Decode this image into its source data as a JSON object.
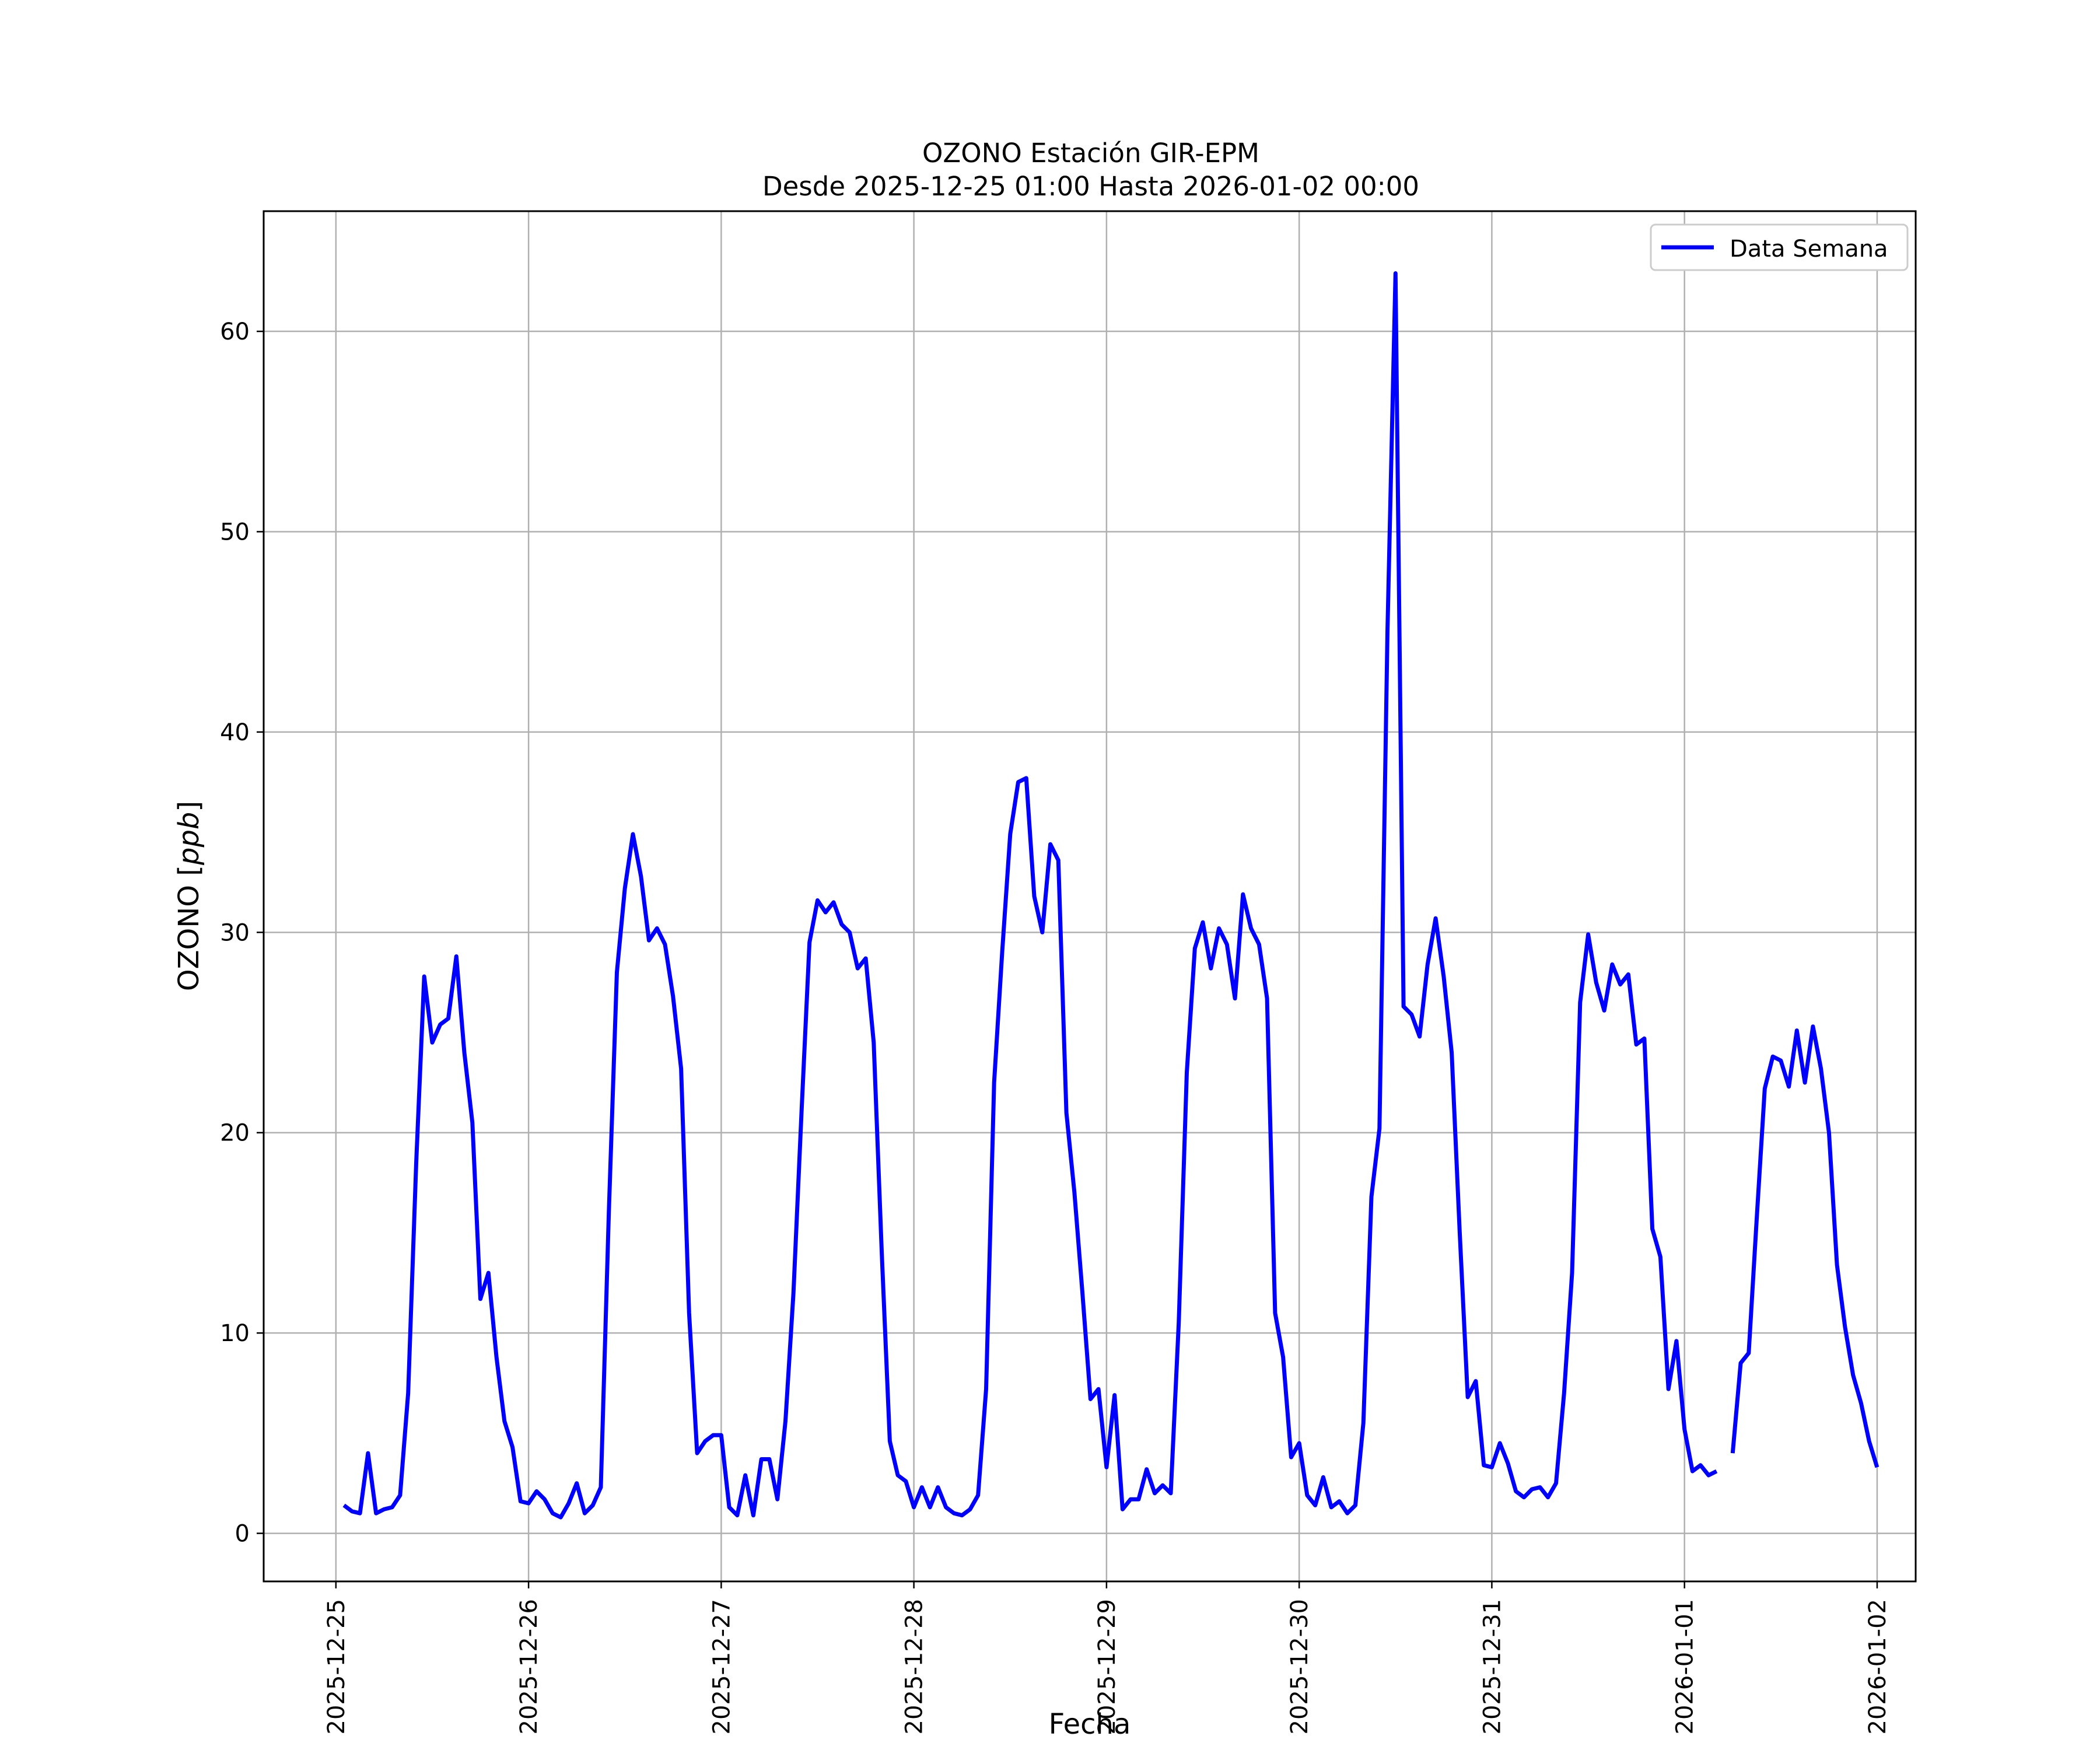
{
  "chart_data": {
    "type": "line",
    "title": "OZONO Estación GIR-EPM",
    "subtitle": "Desde 2025-12-25 01:00 Hasta 2026-01-02 00:00",
    "xlabel": "Fecha",
    "ylabel": "OZONO [ppb]",
    "ylabel_main": "OZONO [",
    "ylabel_unit": "ppb",
    "ylabel_close": "]",
    "ylim": [
      -2.4,
      66
    ],
    "xlim": [
      "2025-12-24 15:00",
      "2026-01-02 04:48"
    ],
    "yticks": [
      0,
      10,
      20,
      30,
      40,
      50,
      60
    ],
    "xticks": [
      "2025-12-25",
      "2025-12-26",
      "2025-12-27",
      "2025-12-28",
      "2025-12-29",
      "2025-12-30",
      "2025-12-31",
      "2026-01-01",
      "2026-01-02"
    ],
    "grid": true,
    "legend": "upper-right",
    "line_color": "#0000ff",
    "series": [
      {
        "name": "Data Semana",
        "x": [
          "2025-12-25 01:00",
          "2025-12-25 02:00",
          "2025-12-25 03:00",
          "2025-12-25 04:00",
          "2025-12-25 05:00",
          "2025-12-25 06:00",
          "2025-12-25 07:00",
          "2025-12-25 08:00",
          "2025-12-25 09:00",
          "2025-12-25 10:00",
          "2025-12-25 11:00",
          "2025-12-25 12:00",
          "2025-12-25 13:00",
          "2025-12-25 14:00",
          "2025-12-25 15:00",
          "2025-12-25 16:00",
          "2025-12-25 17:00",
          "2025-12-25 18:00",
          "2025-12-25 19:00",
          "2025-12-25 20:00",
          "2025-12-25 21:00",
          "2025-12-25 22:00",
          "2025-12-25 23:00",
          "2025-12-26 00:00",
          "2025-12-26 01:00",
          "2025-12-26 02:00",
          "2025-12-26 03:00",
          "2025-12-26 04:00",
          "2025-12-26 05:00",
          "2025-12-26 06:00",
          "2025-12-26 07:00",
          "2025-12-26 08:00",
          "2025-12-26 09:00",
          "2025-12-26 10:00",
          "2025-12-26 11:00",
          "2025-12-26 12:00",
          "2025-12-26 13:00",
          "2025-12-26 14:00",
          "2025-12-26 15:00",
          "2025-12-26 16:00",
          "2025-12-26 17:00",
          "2025-12-26 18:00",
          "2025-12-26 19:00",
          "2025-12-26 20:00",
          "2025-12-26 21:00",
          "2025-12-26 22:00",
          "2025-12-26 23:00",
          "2025-12-27 00:00",
          "2025-12-27 01:00",
          "2025-12-27 02:00",
          "2025-12-27 03:00",
          "2025-12-27 04:00",
          "2025-12-27 05:00",
          "2025-12-27 06:00",
          "2025-12-27 07:00",
          "2025-12-27 08:00",
          "2025-12-27 09:00",
          "2025-12-27 10:00",
          "2025-12-27 11:00",
          "2025-12-27 12:00",
          "2025-12-27 13:00",
          "2025-12-27 14:00",
          "2025-12-27 15:00",
          "2025-12-27 16:00",
          "2025-12-27 17:00",
          "2025-12-27 18:00",
          "2025-12-27 19:00",
          "2025-12-27 20:00",
          "2025-12-27 21:00",
          "2025-12-27 22:00",
          "2025-12-27 23:00",
          "2025-12-28 00:00",
          "2025-12-28 01:00",
          "2025-12-28 02:00",
          "2025-12-28 03:00",
          "2025-12-28 04:00",
          "2025-12-28 05:00",
          "2025-12-28 06:00",
          "2025-12-28 07:00",
          "2025-12-28 08:00",
          "2025-12-28 09:00",
          "2025-12-28 10:00",
          "2025-12-28 11:00",
          "2025-12-28 12:00",
          "2025-12-28 13:00",
          "2025-12-28 14:00",
          "2025-12-28 15:00",
          "2025-12-28 16:00",
          "2025-12-28 17:00",
          "2025-12-28 18:00",
          "2025-12-28 19:00",
          "2025-12-28 20:00",
          "2025-12-28 21:00",
          "2025-12-28 22:00",
          "2025-12-28 23:00",
          "2025-12-29 00:00",
          "2025-12-29 01:00",
          "2025-12-29 02:00",
          "2025-12-29 03:00",
          "2025-12-29 04:00",
          "2025-12-29 05:00",
          "2025-12-29 06:00",
          "2025-12-29 07:00",
          "2025-12-29 08:00",
          "2025-12-29 09:00",
          "2025-12-29 10:00",
          "2025-12-29 11:00",
          "2025-12-29 12:00",
          "2025-12-29 13:00",
          "2025-12-29 14:00",
          "2025-12-29 15:00",
          "2025-12-29 16:00",
          "2025-12-29 17:00",
          "2025-12-29 18:00",
          "2025-12-29 19:00",
          "2025-12-29 20:00",
          "2025-12-29 21:00",
          "2025-12-29 22:00",
          "2025-12-29 23:00",
          "2025-12-30 00:00",
          "2025-12-30 01:00",
          "2025-12-30 02:00",
          "2025-12-30 03:00",
          "2025-12-30 04:00",
          "2025-12-30 05:00",
          "2025-12-30 06:00",
          "2025-12-30 07:00",
          "2025-12-30 08:00",
          "2025-12-30 09:00",
          "2025-12-30 10:00",
          "2025-12-30 11:00",
          "2025-12-30 12:00",
          "2025-12-30 13:00",
          "2025-12-30 14:00",
          "2025-12-30 15:00",
          "2025-12-30 16:00",
          "2025-12-30 17:00",
          "2025-12-30 18:00",
          "2025-12-30 19:00",
          "2025-12-30 20:00",
          "2025-12-30 21:00",
          "2025-12-30 22:00",
          "2025-12-30 23:00",
          "2025-12-31 00:00",
          "2025-12-31 01:00",
          "2025-12-31 02:00",
          "2025-12-31 03:00",
          "2025-12-31 04:00",
          "2025-12-31 05:00",
          "2025-12-31 06:00",
          "2025-12-31 07:00",
          "2025-12-31 08:00",
          "2025-12-31 09:00",
          "2025-12-31 10:00",
          "2025-12-31 11:00",
          "2025-12-31 12:00",
          "2025-12-31 13:00",
          "2025-12-31 14:00",
          "2025-12-31 15:00",
          "2025-12-31 16:00",
          "2025-12-31 17:00",
          "2025-12-31 18:00",
          "2025-12-31 19:00",
          "2025-12-31 20:00",
          "2025-12-31 21:00",
          "2025-12-31 22:00",
          "2025-12-31 23:00",
          "2026-01-01 00:00",
          "2026-01-01 01:00",
          "2026-01-01 02:00",
          "2026-01-01 03:00",
          "2026-01-01 04:00",
          "2026-01-01 05:00",
          "2026-01-01 06:00",
          "2026-01-01 07:00",
          "2026-01-01 08:00",
          "2026-01-01 09:00",
          "2026-01-01 10:00",
          "2026-01-01 11:00",
          "2026-01-01 12:00",
          "2026-01-01 13:00",
          "2026-01-01 14:00",
          "2026-01-01 15:00",
          "2026-01-01 16:00",
          "2026-01-01 17:00",
          "2026-01-01 18:00",
          "2026-01-01 19:00",
          "2026-01-01 20:00",
          "2026-01-01 21:00",
          "2026-01-01 22:00",
          "2026-01-01 23:00",
          "2026-01-02 00:00"
        ],
        "y": [
          1.4,
          1.1,
          1.0,
          4.0,
          1.0,
          1.2,
          1.3,
          1.9,
          7.0,
          18.5,
          27.8,
          24.5,
          25.4,
          25.7,
          28.8,
          24.0,
          20.5,
          11.7,
          13.0,
          8.8,
          5.6,
          4.3,
          1.6,
          1.5,
          2.1,
          1.7,
          1.0,
          0.8,
          1.5,
          2.5,
          1.0,
          1.4,
          2.3,
          16.0,
          28.0,
          32.2,
          34.9,
          32.8,
          29.6,
          30.2,
          29.4,
          26.8,
          23.2,
          11.0,
          4.0,
          4.6,
          4.9,
          4.9,
          1.3,
          0.9,
          2.9,
          0.9,
          3.7,
          3.7,
          1.7,
          5.6,
          12.0,
          21.0,
          29.5,
          31.6,
          31.0,
          31.5,
          30.4,
          30.0,
          28.2,
          28.7,
          24.5,
          14.0,
          4.6,
          2.9,
          2.6,
          1.3,
          2.3,
          1.3,
          2.3,
          1.3,
          1.0,
          0.9,
          1.2,
          1.9,
          7.2,
          22.5,
          29.0,
          34.9,
          37.5,
          37.7,
          31.8,
          30.0,
          34.4,
          33.6,
          21.0,
          17.0,
          12.0,
          6.7,
          7.2,
          3.3,
          6.9,
          1.2,
          1.7,
          1.7,
          3.2,
          2.0,
          2.4,
          2.0,
          10.5,
          23.0,
          29.2,
          30.5,
          28.2,
          30.2,
          29.4,
          26.7,
          31.9,
          30.2,
          29.4,
          26.7,
          11.0,
          8.8,
          3.8,
          4.5,
          1.9,
          1.4,
          2.8,
          1.3,
          1.6,
          1.0,
          1.4,
          5.5,
          16.8,
          20.2,
          45.0,
          62.9,
          26.3,
          25.9,
          24.8,
          28.4,
          30.7,
          27.8,
          24.0,
          15.0,
          6.8,
          7.6,
          3.4,
          3.3,
          4.5,
          3.5,
          2.1,
          1.8,
          2.2,
          2.3,
          1.8,
          2.5,
          7.0,
          13.0,
          26.5,
          29.9,
          27.5,
          26.1,
          28.4,
          27.4,
          27.9,
          24.4,
          24.7,
          15.2,
          13.8,
          7.2,
          9.6,
          5.2,
          3.1,
          3.4,
          2.9,
          3.1,
          null,
          4.0,
          8.5,
          9.0,
          15.7,
          22.2,
          23.8,
          23.6,
          22.3,
          25.1,
          22.5,
          25.3,
          23.2,
          20.0,
          13.4,
          10.3,
          7.9,
          6.5,
          4.6,
          3.3
        ]
      }
    ]
  }
}
